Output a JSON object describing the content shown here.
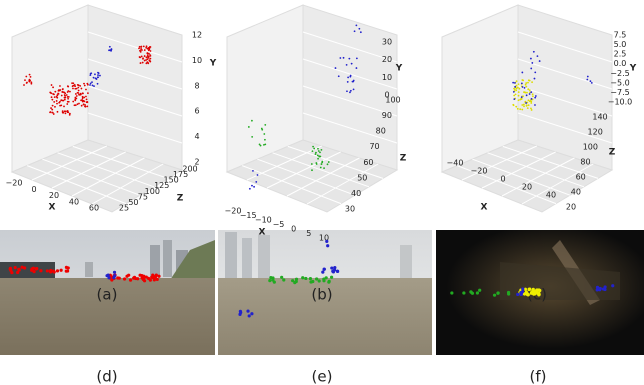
{
  "panels": [
    {
      "caption": "(a)",
      "x_label": "X",
      "y_label": "Y",
      "z_label": "Z",
      "x_ticks": [
        "−20",
        "0",
        "20",
        "40",
        "60"
      ],
      "z_ticks": [
        "25",
        "50",
        "75",
        "100",
        "125",
        "150",
        "175",
        "200"
      ],
      "y_ticks": [
        "2",
        "4",
        "6",
        "8",
        "10",
        "12"
      ]
    },
    {
      "caption": "(b)",
      "x_label": "X",
      "y_label": "Y",
      "z_label": "Z",
      "x_ticks": [
        "−20",
        "−15",
        "−10",
        "−5",
        "0",
        "5",
        "10"
      ],
      "z_ticks": [
        "30",
        "40",
        "50",
        "60",
        "70",
        "80",
        "90",
        "100"
      ],
      "y_ticks": [
        "0",
        "10",
        "20",
        "30"
      ]
    },
    {
      "caption": "(c)",
      "x_label": "X",
      "y_label": "Y",
      "z_label": "Z",
      "x_ticks": [
        "−40",
        "−20",
        "0",
        "20",
        "40"
      ],
      "z_ticks": [
        "20",
        "40",
        "60",
        "80",
        "100",
        "120",
        "140"
      ],
      "y_ticks": [
        "−10.0",
        "−7.5",
        "−5.0",
        "−2.5",
        "0.0",
        "2.5",
        "5.0",
        "7.5"
      ]
    }
  ],
  "photos": [
    {
      "caption": "(d)"
    },
    {
      "caption": "(e)"
    },
    {
      "caption": "(f)"
    }
  ]
}
